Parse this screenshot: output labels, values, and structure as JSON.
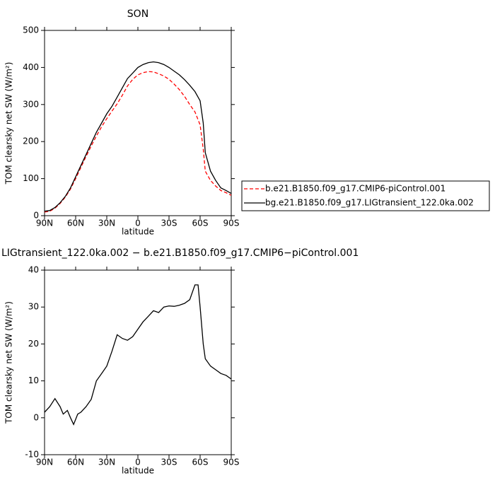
{
  "chart_data": [
    {
      "type": "line",
      "title": "SON",
      "xlabel": "latitude",
      "ylabel": "TOM clearsky net SW (W/m²)",
      "x": [
        90,
        85,
        80,
        75,
        70,
        65,
        60,
        55,
        50,
        45,
        40,
        35,
        30,
        25,
        20,
        15,
        10,
        5,
        0,
        -5,
        -10,
        -15,
        -20,
        -25,
        -30,
        -35,
        -40,
        -45,
        -50,
        -55,
        -60,
        -63,
        -65,
        -70,
        -75,
        -80,
        -85,
        -90
      ],
      "series": [
        {
          "name": "b.e21.B1850.f09_g17.CMIP6-piControl.001",
          "color": "#ff0000",
          "dash": "dashed",
          "values": [
            10,
            12,
            20,
            33,
            50,
            72,
            100,
            130,
            160,
            188,
            215,
            240,
            262,
            282,
            302,
            325,
            350,
            368,
            380,
            386,
            389,
            388,
            383,
            377,
            368,
            355,
            340,
            322,
            300,
            280,
            245,
            180,
            120,
            95,
            80,
            68,
            62,
            55
          ]
        },
        {
          "name": "bg.e21.B1850.f09_g17.LIGtransient_122.0ka.002",
          "color": "#000000",
          "dash": "solid",
          "values": [
            12,
            14,
            22,
            35,
            52,
            75,
            105,
            135,
            165,
            195,
            225,
            250,
            275,
            295,
            320,
            345,
            370,
            385,
            400,
            408,
            413,
            415,
            413,
            408,
            400,
            390,
            380,
            367,
            352,
            335,
            310,
            250,
            170,
            120,
            95,
            75,
            68,
            60
          ]
        }
      ],
      "xlim": [
        90,
        -90
      ],
      "ylim": [
        0,
        500
      ],
      "xticks": [
        {
          "value": 90,
          "label": "90N"
        },
        {
          "value": 60,
          "label": "60N"
        },
        {
          "value": 30,
          "label": "30N"
        },
        0,
        {
          "value": -30,
          "label": "30S"
        },
        {
          "value": -60,
          "label": "60S"
        },
        {
          "value": -90,
          "label": "90S"
        }
      ],
      "yticks": [
        0,
        100,
        200,
        300,
        400,
        500
      ],
      "legend": "right"
    },
    {
      "type": "line",
      "title": "LIGtransient_122.0ka.002 − b.e21.B1850.f09_g17.CMIP6−piControl.001",
      "xlabel": "latitude",
      "ylabel": "TOM clearsky net SW (W/m²)",
      "x": [
        90,
        85,
        80,
        75,
        72,
        68,
        65,
        62,
        58,
        55,
        50,
        45,
        40,
        35,
        30,
        25,
        20,
        15,
        10,
        5,
        0,
        -5,
        -10,
        -15,
        -20,
        -25,
        -30,
        -35,
        -40,
        -45,
        -50,
        -55,
        -58,
        -60,
        -63,
        -65,
        -70,
        -75,
        -80,
        -85,
        -90
      ],
      "series": [
        {
          "color": "#000000",
          "dash": "solid",
          "values": [
            1.5,
            3,
            5.2,
            3,
            1,
            2,
            0,
            -1.8,
            1,
            1.5,
            3,
            5,
            10,
            12,
            14,
            18,
            22.5,
            21.5,
            21,
            22,
            24,
            26,
            27.5,
            29,
            28.5,
            30,
            30.3,
            30.2,
            30.5,
            31,
            32,
            36,
            36,
            30,
            20,
            16,
            14,
            13,
            12,
            11.5,
            10.5
          ]
        }
      ],
      "xlim": [
        90,
        -90
      ],
      "ylim": [
        -10,
        40
      ],
      "xticks": [
        {
          "value": 90,
          "label": "90N"
        },
        {
          "value": 60,
          "label": "60N"
        },
        {
          "value": 30,
          "label": "30N"
        },
        0,
        {
          "value": -30,
          "label": "30S"
        },
        {
          "value": -60,
          "label": "60S"
        },
        {
          "value": -90,
          "label": "90S"
        }
      ],
      "yticks": [
        -10,
        0,
        10,
        20,
        30,
        40
      ]
    }
  ]
}
